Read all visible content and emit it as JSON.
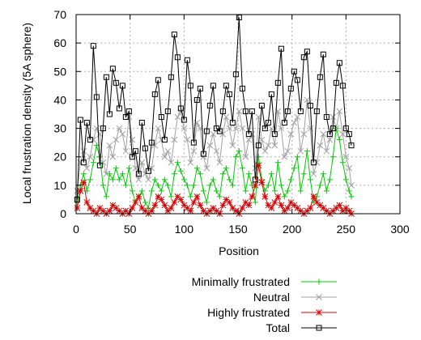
{
  "chart_data": {
    "type": "line",
    "title": "",
    "xlabel": "Position",
    "ylabel": "Local frustration density (5A sphere)",
    "xlim": [
      0,
      300
    ],
    "ylim": [
      0,
      70
    ],
    "x_ticks": [
      0,
      50,
      100,
      150,
      200,
      250,
      300
    ],
    "y_ticks": [
      0,
      10,
      20,
      30,
      40,
      50,
      60,
      70
    ],
    "grid": true,
    "legend_position": "bottom-right, outside plot",
    "x": [
      1,
      4,
      7,
      10,
      13,
      16,
      19,
      22,
      25,
      28,
      31,
      34,
      37,
      40,
      43,
      46,
      49,
      52,
      55,
      58,
      61,
      64,
      67,
      70,
      73,
      76,
      79,
      82,
      85,
      88,
      91,
      94,
      97,
      100,
      103,
      106,
      109,
      112,
      115,
      118,
      121,
      124,
      127,
      130,
      133,
      136,
      139,
      142,
      145,
      148,
      151,
      154,
      157,
      160,
      163,
      166,
      169,
      172,
      175,
      178,
      181,
      184,
      187,
      190,
      193,
      196,
      199,
      202,
      205,
      208,
      211,
      214,
      217,
      220,
      223,
      226,
      229,
      232,
      235,
      238,
      241,
      244,
      247,
      250,
      253,
      255
    ],
    "series": [
      {
        "name": "Minimally frustrated",
        "color": "#00cc00",
        "marker": "plus",
        "values": [
          4,
          10,
          14,
          8,
          12,
          18,
          24,
          20,
          10,
          6,
          14,
          12,
          16,
          12,
          14,
          10,
          16,
          8,
          4,
          6,
          8,
          4,
          2,
          8,
          12,
          10,
          8,
          12,
          10,
          6,
          14,
          18,
          15,
          12,
          10,
          6,
          10,
          16,
          14,
          8,
          4,
          10,
          12,
          8,
          6,
          14,
          16,
          12,
          10,
          20,
          22,
          16,
          8,
          14,
          10,
          4,
          20,
          12,
          8,
          10,
          14,
          8,
          18,
          10,
          6,
          8,
          12,
          16,
          20,
          8,
          14,
          22,
          12,
          4,
          6,
          10,
          14,
          8,
          12,
          20,
          30,
          26,
          18,
          12,
          8,
          6
        ]
      },
      {
        "name": "Neutral",
        "color": "#a0a0a0",
        "marker": "x",
        "values": [
          8,
          18,
          22,
          16,
          20,
          26,
          30,
          28,
          18,
          14,
          24,
          20,
          26,
          30,
          28,
          22,
          34,
          26,
          16,
          12,
          18,
          14,
          12,
          16,
          24,
          30,
          26,
          20,
          22,
          18,
          26,
          34,
          36,
          30,
          26,
          18,
          22,
          32,
          30,
          20,
          16,
          24,
          28,
          22,
          18,
          28,
          34,
          30,
          24,
          30,
          36,
          30,
          20,
          26,
          28,
          16,
          34,
          26,
          22,
          24,
          30,
          24,
          36,
          30,
          20,
          22,
          28,
          32,
          34,
          22,
          28,
          40,
          30,
          14,
          18,
          24,
          28,
          22,
          26,
          34,
          30,
          36,
          28,
          20,
          16,
          10
        ]
      },
      {
        "name": "Highly frustrated",
        "color": "#dd0000",
        "marker": "star",
        "values": [
          2,
          8,
          11,
          4,
          2,
          1,
          0,
          2,
          1,
          0,
          1,
          3,
          2,
          1,
          0,
          1,
          0,
          2,
          4,
          6,
          2,
          1,
          0,
          1,
          3,
          6,
          5,
          3,
          1,
          2,
          4,
          6,
          5,
          3,
          2,
          1,
          4,
          6,
          3,
          1,
          0,
          1,
          2,
          1,
          0,
          3,
          5,
          4,
          2,
          1,
          0,
          2,
          4,
          3,
          6,
          10,
          17,
          11,
          6,
          3,
          2,
          4,
          6,
          3,
          1,
          2,
          4,
          3,
          2,
          1,
          0,
          1,
          2,
          6,
          4,
          3,
          2,
          1,
          0,
          1,
          2,
          3,
          1,
          2,
          1,
          0
        ]
      },
      {
        "name": "Total",
        "color": "#000000",
        "marker": "square",
        "values": [
          5,
          33,
          18,
          32,
          26,
          59,
          41,
          17,
          30,
          48,
          35,
          51,
          46,
          37,
          45,
          34,
          36,
          20,
          22,
          14,
          32,
          23,
          15,
          25,
          42,
          47,
          34,
          26,
          36,
          48,
          63,
          55,
          37,
          33,
          54,
          45,
          25,
          40,
          44,
          21,
          29,
          38,
          45,
          30,
          29,
          36,
          45,
          42,
          32,
          49,
          69,
          44,
          36,
          28,
          36,
          12,
          24,
          38,
          30,
          32,
          42,
          28,
          46,
          58,
          32,
          36,
          44,
          50,
          47,
          36,
          55,
          57,
          38,
          18,
          36,
          48,
          56,
          34,
          28,
          30,
          46,
          53,
          45,
          30,
          28,
          24
        ]
      }
    ]
  }
}
